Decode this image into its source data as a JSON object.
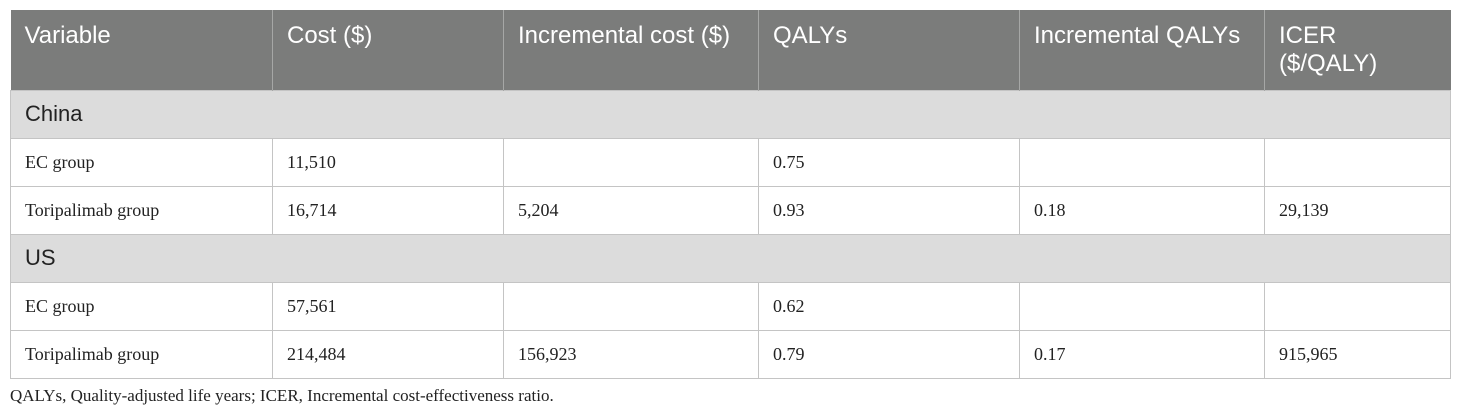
{
  "table": {
    "headers": [
      "Variable",
      "Cost ($)",
      "Incremental cost ($)",
      "QALYs",
      "Incremental QALYs",
      "ICER ($/QALY)"
    ],
    "sections": [
      {
        "label": "China",
        "rows": [
          [
            "EC group",
            "11,510",
            "",
            "0.75",
            "",
            ""
          ],
          [
            "Toripalimab group",
            "16,714",
            "5,204",
            "0.93",
            "0.18",
            "29,139"
          ]
        ]
      },
      {
        "label": "US",
        "rows": [
          [
            "EC group",
            "57,561",
            "",
            "0.62",
            "",
            ""
          ],
          [
            "Toripalimab group",
            "214,484",
            "156,923",
            "0.79",
            "0.17",
            "915,965"
          ]
        ]
      }
    ]
  },
  "footnote": "QALYs, Quality-adjusted life years; ICER, Incremental cost-effectiveness ratio."
}
